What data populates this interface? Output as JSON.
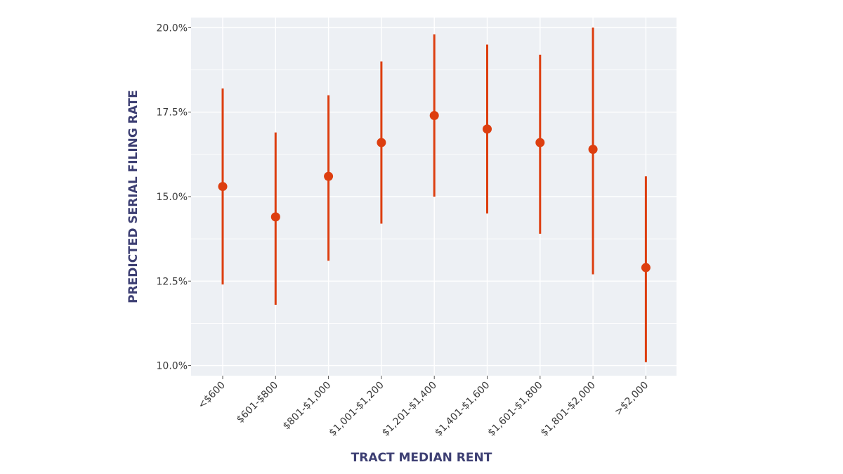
{
  "chart_data": {
    "type": "scatter",
    "title": "",
    "xlabel": "TRACT MEDIAN RENT",
    "ylabel": "PREDICTED SERIAL FILING RATE",
    "categories": [
      "<$600",
      "$601-$800",
      "$801-$1,000",
      "$1,001-$1,200",
      "$1,201-$1,400",
      "$1,401-$1,600",
      "$1,601-$1,800",
      "$1,801-$2,000",
      ">$2,000"
    ],
    "values": [
      15.3,
      14.4,
      15.6,
      16.6,
      17.4,
      17.0,
      16.6,
      16.4,
      12.9
    ],
    "lower": [
      12.4,
      11.8,
      13.1,
      14.2,
      15.0,
      14.5,
      13.9,
      12.7,
      10.1
    ],
    "upper": [
      18.2,
      16.9,
      18.0,
      19.0,
      19.8,
      19.5,
      19.2,
      20.0,
      15.6
    ],
    "ylim": [
      9.7,
      20.3
    ],
    "yticks": [
      10.0,
      12.5,
      15.0,
      17.5,
      20.0
    ],
    "ytick_labels": [
      "10.0%",
      "12.5%",
      "15.0%",
      "17.5%",
      "20.0%"
    ],
    "grid": true,
    "colors": {
      "marker": "#dd3e0f",
      "panel": "#edf0f4",
      "grid": "#ffffff",
      "axis_title": "#3d3f73",
      "tick_text": "#3a3a3a"
    }
  }
}
